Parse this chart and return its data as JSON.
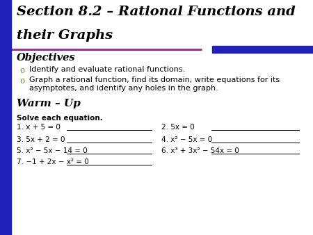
{
  "bg_color": "#ffffff",
  "left_bar_color": "#2222bb",
  "title_line1": "Section 8.2 – Rational Functions and",
  "title_line2": "their Graphs",
  "title_color": "#000000",
  "divider_left_color": "#993399",
  "divider_right_color": "#2222bb",
  "objectives_label": "Objectives",
  "bullet_color": "#669933",
  "bullet1": "Identify and evaluate rational functions.",
  "bullet2_line1": "Graph a rational function, find its domain, write equations for its",
  "bullet2_line2": "asymptotes, and identify any holes in the graph.",
  "warm_up_label": "Warm – Up",
  "solve_label": "Solve each equation.",
  "problems_left": [
    {
      "num": "1.",
      "eq": "x + 5 = 0"
    },
    {
      "num": "3.",
      "eq": "5x + 2 = 0"
    },
    {
      "num": "5.",
      "eq": "x² − 5x − 14 = 0"
    },
    {
      "num": "7.",
      "eq": "−1 + 2x − x² = 0"
    }
  ],
  "problems_right": [
    {
      "num": "2.",
      "eq": "5x = 0"
    },
    {
      "num": "4.",
      "eq": "x² − 5x = 0"
    },
    {
      "num": "6.",
      "eq": "x³ + 3x² − 54x = 0"
    },
    {
      "num": "",
      "eq": ""
    }
  ]
}
